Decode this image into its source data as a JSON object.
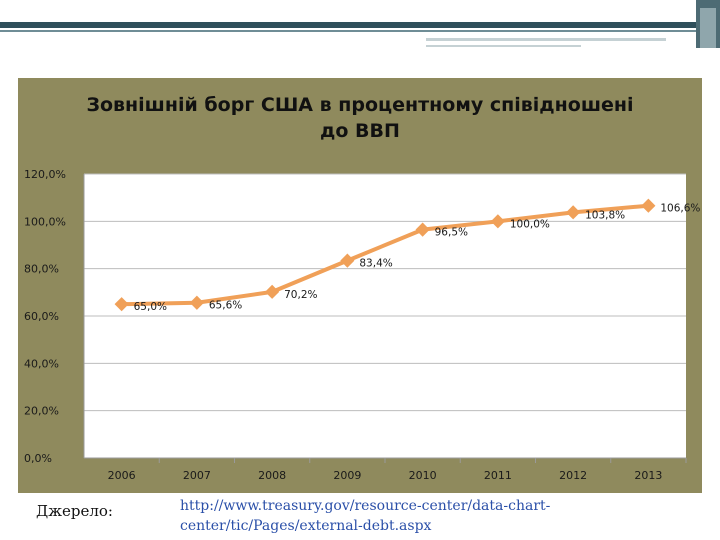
{
  "slide": {
    "source_label": "Джерело:",
    "source_link_line1": "http://www.treasury.gov/resource-center/data-chart-",
    "source_link_line2": "center/tic/Pages/external-debt.aspx"
  },
  "colors": {
    "chart_background": "#8f8a5d",
    "plot_background": "#ffffff",
    "series": "#f0a058",
    "grid": "#bdbdbd"
  },
  "chart_data": {
    "type": "line",
    "title_line1": "Зовнішній борг США в процентному співідношені",
    "title_line2": "до ВВП",
    "categories": [
      "2006",
      "2007",
      "2008",
      "2009",
      "2010",
      "2011",
      "2012",
      "2013"
    ],
    "series": [
      {
        "values": [
          65.0,
          65.6,
          70.2,
          83.4,
          96.5,
          100.0,
          103.8,
          106.6
        ],
        "labels": [
          "65,0%",
          "65,6%",
          "70,2%",
          "83,4%",
          "96,5%",
          "100,0%",
          "103,8%",
          "106,6%"
        ]
      }
    ],
    "ylim": [
      0,
      120
    ],
    "yticks": [
      0,
      20,
      40,
      60,
      80,
      100,
      120
    ],
    "ytick_labels": [
      "0,0%",
      "20,0%",
      "40,0%",
      "60,0%",
      "80,0%",
      "100,0%",
      "120,0%"
    ],
    "grid": true,
    "legend": "none",
    "xlabel": "",
    "ylabel": ""
  }
}
